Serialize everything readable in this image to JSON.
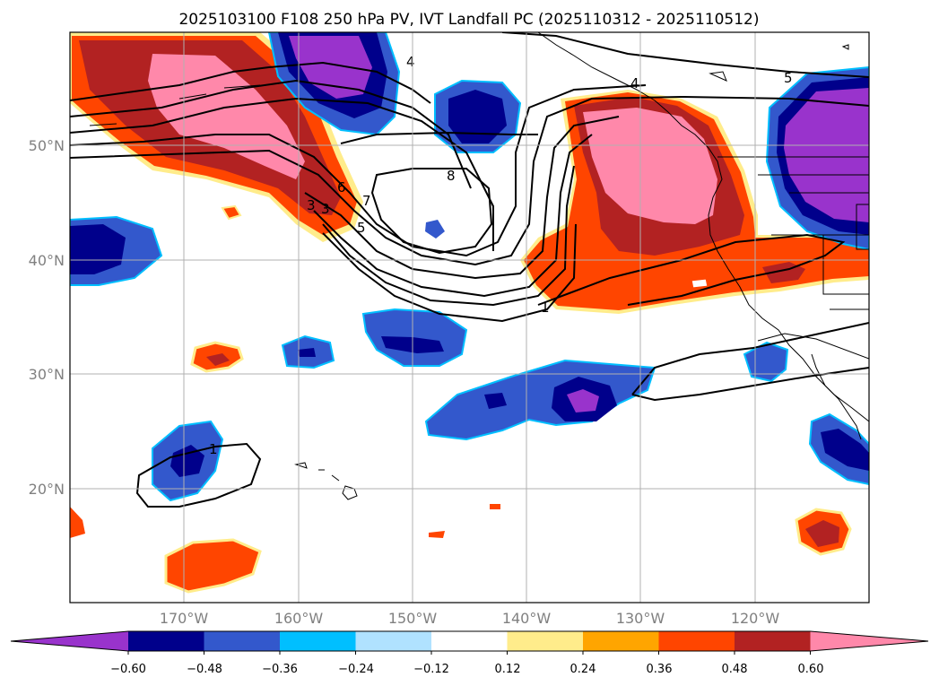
{
  "title": "2025103100 F108 250 hPa PV, IVT Landfall PC (2025110312 - 2025110512)",
  "lat_labels": [
    "50°N",
    "40°N",
    "30°N",
    "20°N"
  ],
  "lon_labels": [
    "170°W",
    "160°W",
    "150°W",
    "140°W",
    "130°W",
    "120°W"
  ],
  "colorbar": {
    "colors": [
      "#9933cc",
      "#00008b",
      "#3358cc",
      "#00bfff",
      "#b0e2ff",
      "#ffffff",
      "#ffec8b",
      "#ffa500",
      "#ff4500",
      "#b22222",
      "#ff88aa"
    ],
    "tick_labels": [
      "−0.60",
      "−0.48",
      "−0.36",
      "−0.24",
      "−0.12",
      "0.12",
      "0.24",
      "0.36",
      "0.48",
      "0.60"
    ]
  },
  "contour_labels": [
    "8",
    "7",
    "6",
    "5",
    "3",
    "3",
    "4",
    "5",
    "1",
    "1",
    "4"
  ],
  "legend_colors": {
    "frame": "#000000",
    "grid": "#b0b0b0",
    "axis_text": "#808080"
  }
}
